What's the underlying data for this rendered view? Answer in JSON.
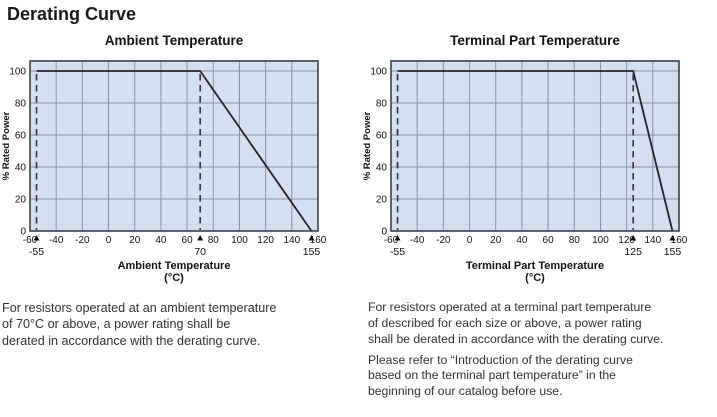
{
  "page": {
    "title": "Derating Curve"
  },
  "chart_style": {
    "plot_bg": "#d4dff0",
    "grid": "#8993a5",
    "frame": "#3c414d",
    "line": "#23252b",
    "dashed": "#2e323c",
    "text": "#111111"
  },
  "chart_data": [
    {
      "type": "line",
      "title": "Ambient Temperature",
      "xlabel": "Ambient Temperature",
      "xlabel_unit": "(°C)",
      "ylabel": "% Rated Power",
      "xlim": [
        -60,
        160
      ],
      "ylim": [
        0,
        100
      ],
      "grid": true,
      "x_ticks": [
        -60,
        -40,
        -20,
        0,
        20,
        40,
        60,
        80,
        100,
        120,
        140,
        160
      ],
      "y_ticks": [
        0,
        20,
        40,
        60,
        80,
        100
      ],
      "series": [
        {
          "name": "derating-curve",
          "points": [
            [
              -55,
              100
            ],
            [
              70,
              100
            ],
            [
              155,
              0
            ]
          ]
        }
      ],
      "dashed_verticals": [
        {
          "x": -55,
          "to_y": 100
        },
        {
          "x": 70,
          "to_y": 100
        }
      ],
      "markers": [
        {
          "x": -55,
          "label": "-55"
        },
        {
          "x": 70,
          "label": "70"
        },
        {
          "x": 155,
          "label": "155"
        }
      ]
    },
    {
      "type": "line",
      "title": "Terminal Part Temperature",
      "xlabel": "Terminal Part Temperature",
      "xlabel_unit": "(°C)",
      "ylabel": "% Rated Power",
      "xlim": [
        -60,
        160
      ],
      "ylim": [
        0,
        100
      ],
      "grid": true,
      "x_ticks": [
        -60,
        -40,
        -20,
        0,
        20,
        40,
        60,
        80,
        100,
        120,
        140,
        160
      ],
      "y_ticks": [
        0,
        20,
        40,
        60,
        80,
        100
      ],
      "series": [
        {
          "name": "derating-curve",
          "points": [
            [
              -55,
              100
            ],
            [
              125,
              100
            ],
            [
              155,
              0
            ]
          ]
        }
      ],
      "dashed_verticals": [
        {
          "x": -55,
          "to_y": 100
        },
        {
          "x": 125,
          "to_y": 100
        }
      ],
      "markers": [
        {
          "x": -55,
          "label": "-55"
        },
        {
          "x": 125,
          "label": "125"
        },
        {
          "x": 155,
          "label": "155"
        }
      ]
    }
  ],
  "notes": {
    "left": {
      "paragraphs": [
        "For resistors operated at an ambient temperature\nof 70°C or above, a power rating shall be\nderated in accordance with the derating curve."
      ]
    },
    "right": {
      "paragraphs": [
        "For resistors operated at a terminal part temperature\nof described for each size or above, a power rating\nshall be derated in accordance with the derating curve.",
        "Please refer to “Introduction of the derating curve\nbased on the terminal part temperature” in the\nbeginning of our catalog before use."
      ]
    }
  }
}
